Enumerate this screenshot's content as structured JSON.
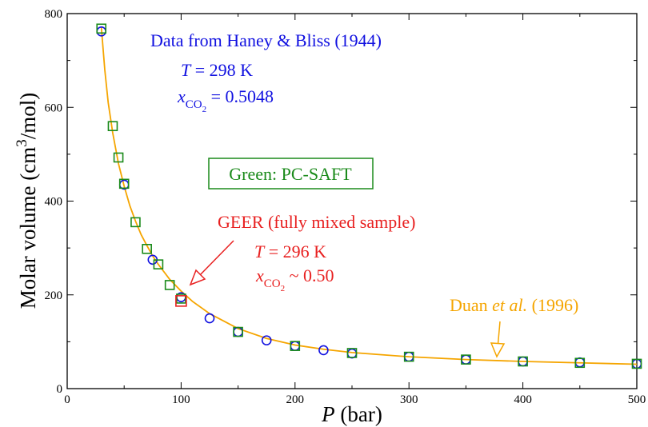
{
  "colors": {
    "haney": "#1010e0",
    "pcsaft": "#1a8a1a",
    "geer": "#e82020",
    "duan": "#f5a500",
    "axis": "#000000"
  },
  "chart_data": {
    "type": "scatter",
    "xlabel_symbol": "P",
    "xlabel_unit": "(bar)",
    "ylabel": "Molar volume (cm",
    "ylabel_sup": "3",
    "ylabel_tail": "/mol)",
    "xlim": [
      0,
      500
    ],
    "ylim": [
      0,
      800
    ],
    "x_ticks": [
      0,
      100,
      200,
      300,
      400,
      500
    ],
    "y_ticks": [
      0,
      200,
      400,
      600,
      800
    ],
    "series": [
      {
        "key": "haney",
        "marker": "circle",
        "points": [
          [
            30,
            762
          ],
          [
            50,
            435
          ],
          [
            75,
            275
          ],
          [
            100,
            195
          ],
          [
            125,
            150
          ],
          [
            150,
            121
          ],
          [
            175,
            103
          ],
          [
            200,
            91
          ],
          [
            225,
            82
          ],
          [
            250,
            75
          ],
          [
            300,
            68
          ],
          [
            350,
            62
          ],
          [
            400,
            58
          ],
          [
            450,
            56
          ],
          [
            500,
            53
          ]
        ]
      },
      {
        "key": "pcsaft",
        "marker": "square",
        "points": [
          [
            30,
            768
          ],
          [
            40,
            560
          ],
          [
            45,
            493
          ],
          [
            50,
            437
          ],
          [
            60,
            355
          ],
          [
            70,
            298
          ],
          [
            80,
            265
          ],
          [
            90,
            221
          ],
          [
            100,
            192
          ],
          [
            150,
            121
          ],
          [
            200,
            91
          ],
          [
            250,
            76
          ],
          [
            300,
            68
          ],
          [
            350,
            62
          ],
          [
            400,
            58
          ],
          [
            450,
            55
          ],
          [
            500,
            53
          ]
        ]
      },
      {
        "key": "geer",
        "marker": "square",
        "points": [
          [
            100,
            187
          ]
        ]
      },
      {
        "key": "duan",
        "marker": "line",
        "points": [
          [
            30,
            770
          ],
          [
            33,
            680
          ],
          [
            36,
            610
          ],
          [
            40,
            545
          ],
          [
            45,
            480
          ],
          [
            50,
            432
          ],
          [
            55,
            390
          ],
          [
            60,
            357
          ],
          [
            65,
            328
          ],
          [
            70,
            305
          ],
          [
            75,
            283
          ],
          [
            80,
            265
          ],
          [
            90,
            233
          ],
          [
            100,
            208
          ],
          [
            110,
            186
          ],
          [
            125,
            160
          ],
          [
            150,
            128
          ],
          [
            175,
            107
          ],
          [
            200,
            93
          ],
          [
            225,
            84
          ],
          [
            250,
            77
          ],
          [
            300,
            68
          ],
          [
            350,
            62
          ],
          [
            400,
            58
          ],
          [
            450,
            55
          ],
          [
            500,
            52
          ]
        ]
      }
    ],
    "annotations": {
      "haney_title": "Data from Haney & Bliss (1944)",
      "haney_T": "T = 298 K",
      "haney_x_prefix": "x",
      "haney_x_sub": "CO",
      "haney_x_subsub": "2",
      "haney_x_value": " = 0.5048",
      "pcsaft_box": "Green: PC-SAFT",
      "geer_title": "GEER (fully mixed sample)",
      "geer_T": "T = 296 K",
      "geer_x_prefix": "x",
      "geer_x_sub": "CO",
      "geer_x_subsub": "2",
      "geer_x_value": " ~ 0.50",
      "duan_label_pre": "Duan ",
      "duan_label_italic": "et al.",
      "duan_label_post": " (1996)"
    }
  }
}
